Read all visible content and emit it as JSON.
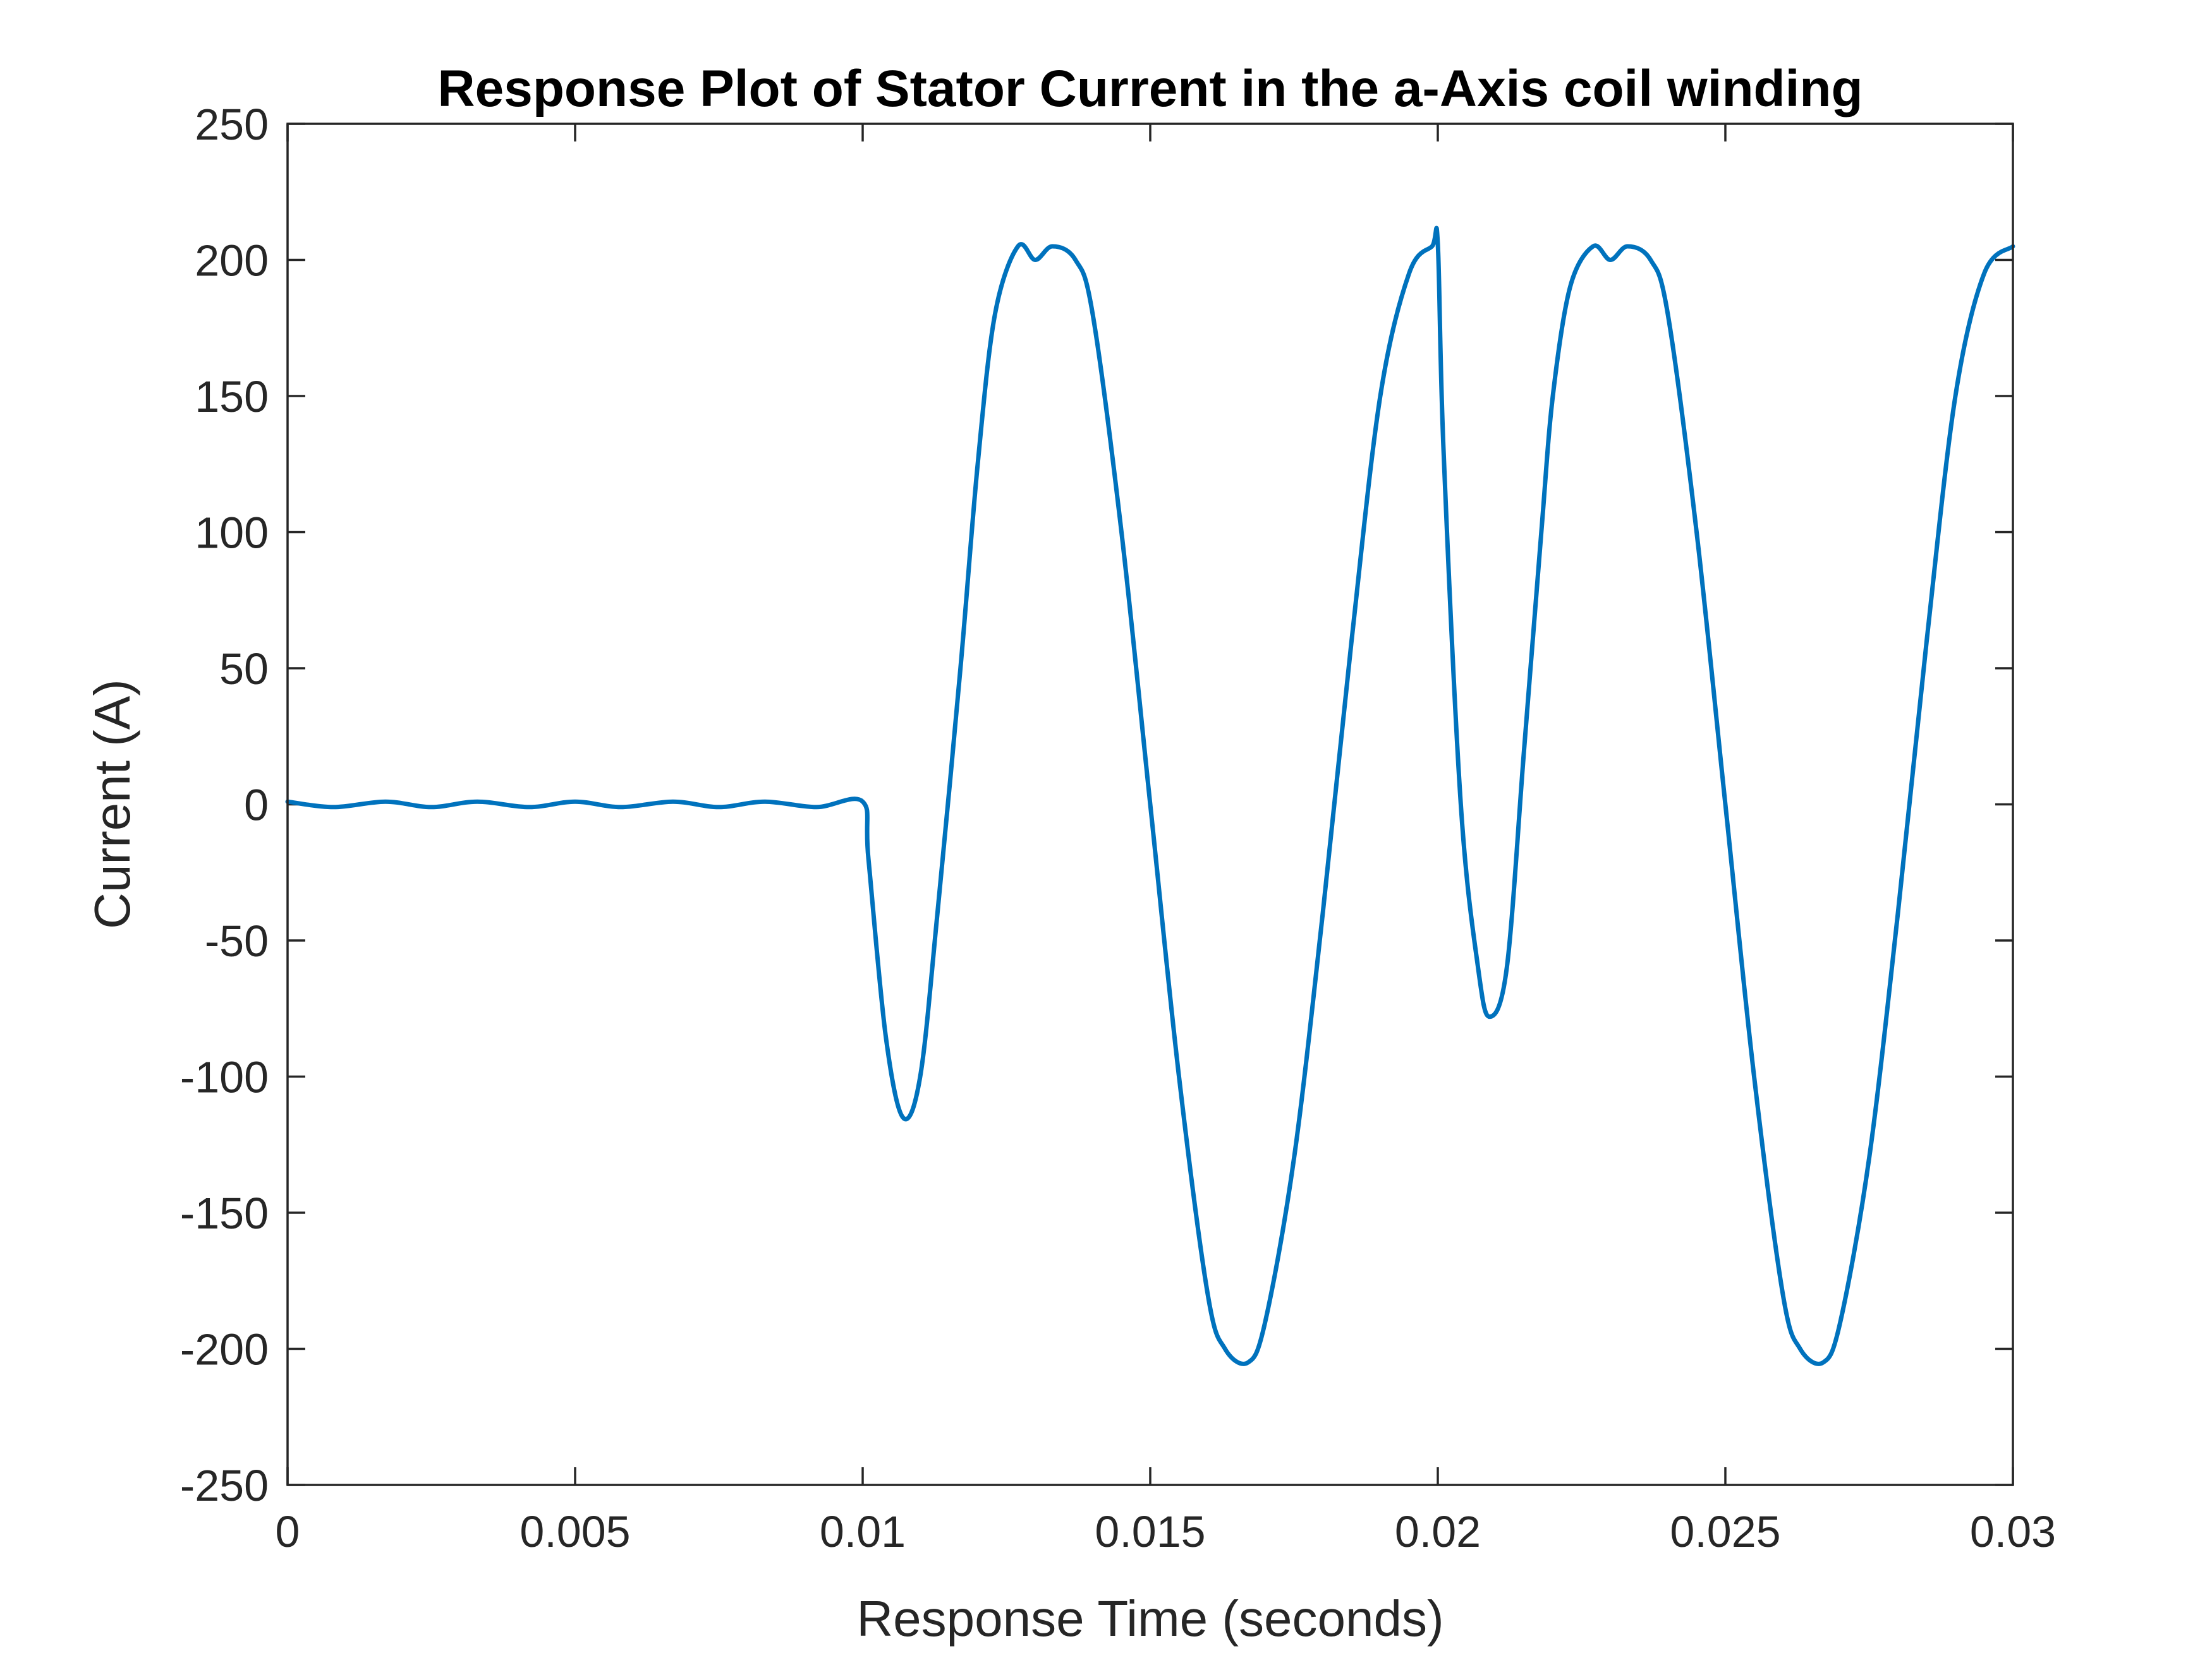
{
  "chart_data": {
    "type": "line",
    "title": "Response Plot of Stator Current in the a-Axis coil winding",
    "xlabel": "Response Time (seconds)",
    "ylabel": "Current (A)",
    "xlim": [
      0,
      0.03
    ],
    "ylim": [
      -250,
      250
    ],
    "xticks": [
      0,
      0.005,
      0.01,
      0.015,
      0.02,
      0.025,
      0.03
    ],
    "xtick_labels": [
      "0",
      "0.005",
      "0.01",
      "0.015",
      "0.02",
      "0.025",
      "0.03"
    ],
    "yticks": [
      250,
      200,
      150,
      100,
      50,
      0,
      -50,
      -100,
      -150,
      -200,
      -250
    ],
    "ytick_labels": [
      "250",
      "200",
      "150",
      "100",
      "50",
      "0",
      "-50",
      "-100",
      "-150",
      "-200",
      "-250"
    ],
    "grid": false,
    "line_color": "#0072BD",
    "series": [
      {
        "x": [
          0,
          0.0008,
          0.0017,
          0.0025,
          0.0033,
          0.0042,
          0.005,
          0.0058,
          0.0067,
          0.0075,
          0.0083,
          0.0092,
          0.01,
          0.0101,
          0.0104,
          0.0107,
          0.011,
          0.0113,
          0.0117,
          0.012,
          0.0123,
          0.0127,
          0.013,
          0.0133,
          0.0137,
          0.014,
          0.0145,
          0.015,
          0.0155,
          0.016,
          0.0163,
          0.0167,
          0.017,
          0.0175,
          0.018,
          0.0185,
          0.019,
          0.0195,
          0.0199,
          0.02,
          0.0201,
          0.0204,
          0.0207,
          0.0209,
          0.0212,
          0.0215,
          0.0218,
          0.022,
          0.0223,
          0.0227,
          0.023,
          0.0233,
          0.0237,
          0.024,
          0.0245,
          0.025,
          0.0255,
          0.026,
          0.0263,
          0.0267,
          0.027,
          0.0275,
          0.028,
          0.0285,
          0.029,
          0.0295,
          0.03
        ],
        "y": [
          1,
          -1,
          1,
          -1,
          1,
          -1,
          1,
          -1,
          1,
          -1,
          1,
          -1,
          1,
          -20,
          -85,
          -115,
          -100,
          -40,
          50,
          125,
          180,
          205,
          200,
          205,
          200,
          180,
          100,
          0,
          -100,
          -180,
          -200,
          -205,
          -190,
          -130,
          -40,
          60,
          150,
          195,
          205,
          206,
          130,
          0,
          -60,
          -78,
          -60,
          20,
          100,
          150,
          190,
          205,
          200,
          205,
          200,
          180,
          100,
          0,
          -100,
          -180,
          -200,
          -205,
          -190,
          -130,
          -40,
          60,
          150,
          195,
          205
        ]
      }
    ]
  }
}
